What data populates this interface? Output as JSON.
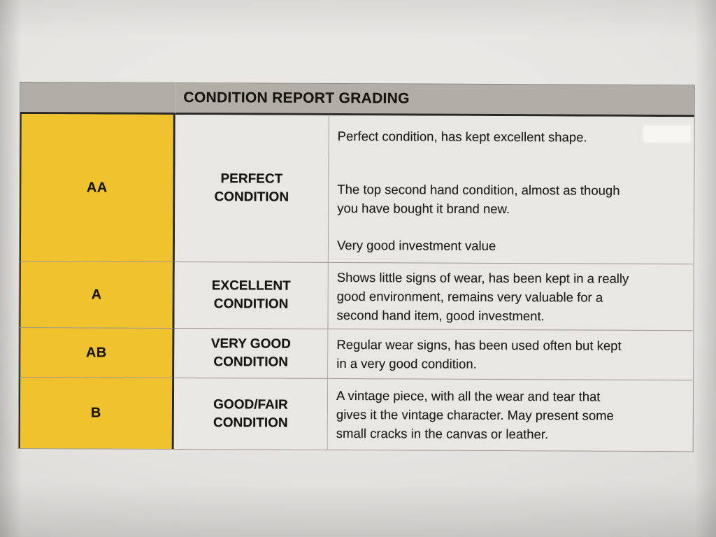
{
  "table": {
    "header_title": "CONDITION REPORT GRADING",
    "rows": [
      {
        "grade": "AA",
        "condition": [
          "PERFECT",
          "CONDITION"
        ],
        "paragraphs": [
          [
            "Perfect condition, has kept excellent shape."
          ],
          [
            "The top second hand condition, almost as though",
            "you have bought it brand new."
          ],
          [
            "Very good investment value"
          ]
        ]
      },
      {
        "grade": "A",
        "condition": [
          "EXCELLENT",
          "CONDITION"
        ],
        "paragraphs": [
          [
            "Shows little signs of wear, has been kept in a really",
            "good environment, remains very valuable for a",
            "second hand item, good investment."
          ]
        ]
      },
      {
        "grade": "AB",
        "condition": [
          "VERY GOOD",
          "CONDITION"
        ],
        "paragraphs": [
          [
            "Regular wear signs, has been used often but kept",
            "in a very good condition."
          ]
        ]
      },
      {
        "grade": "B",
        "condition": [
          "GOOD/FAIR",
          "CONDITION"
        ],
        "paragraphs": [
          [
            "A vintage piece, with all the wear and tear that",
            "gives it the vintage character. May present some",
            "small cracks in the canvas or leather."
          ]
        ]
      }
    ]
  },
  "colors": {
    "grade_column_yellow": "#EFC22E",
    "header_gray": "#B2AEA7",
    "cell_background": "#E9E7E2",
    "page_background": "#E7E5E2",
    "border_dark": "#2B2923",
    "border_light": "#9A978F",
    "text": "#1D1B18"
  }
}
